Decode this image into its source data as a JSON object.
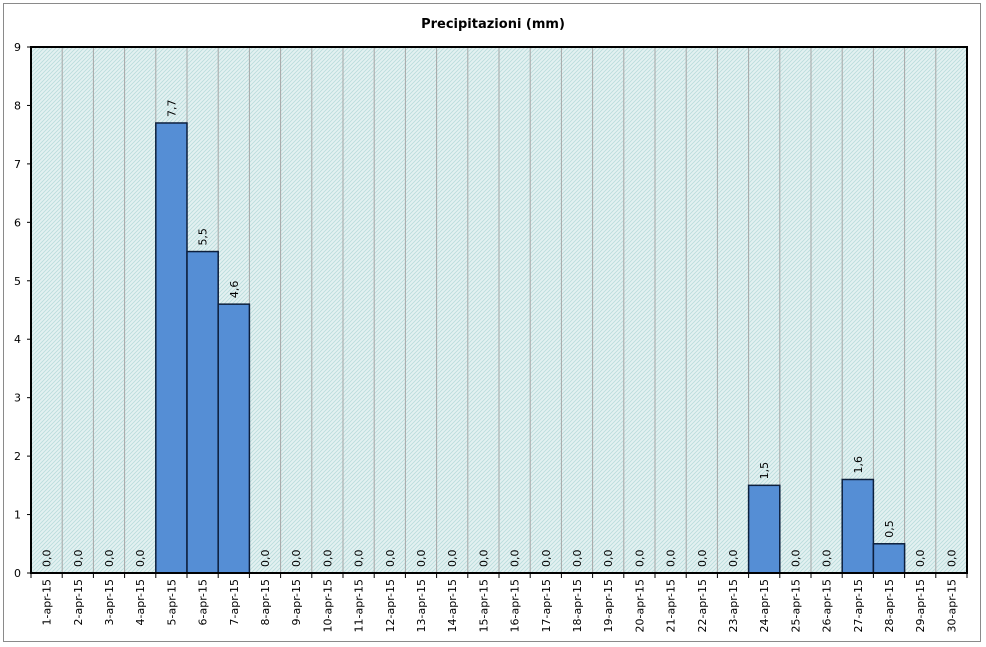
{
  "chart_data": {
    "type": "bar",
    "title": "Precipitazioni (mm)",
    "xlabel": "",
    "ylabel": "",
    "ylim": [
      0,
      9
    ],
    "yticks": [
      0,
      1,
      2,
      3,
      4,
      5,
      6,
      7,
      8,
      9
    ],
    "grid": true,
    "categories": [
      "1-apr-15",
      "2-apr-15",
      "3-apr-15",
      "4-apr-15",
      "5-apr-15",
      "6-apr-15",
      "7-apr-15",
      "8-apr-15",
      "9-apr-15",
      "10-apr-15",
      "11-apr-15",
      "12-apr-15",
      "13-apr-15",
      "14-apr-15",
      "15-apr-15",
      "16-apr-15",
      "17-apr-15",
      "18-apr-15",
      "19-apr-15",
      "20-apr-15",
      "21-apr-15",
      "22-apr-15",
      "23-apr-15",
      "24-apr-15",
      "25-apr-15",
      "26-apr-15",
      "27-apr-15",
      "28-apr-15",
      "29-apr-15",
      "30-apr-15"
    ],
    "values": [
      0.0,
      0.0,
      0.0,
      0.0,
      7.7,
      5.5,
      4.6,
      0.0,
      0.0,
      0.0,
      0.0,
      0.0,
      0.0,
      0.0,
      0.0,
      0.0,
      0.0,
      0.0,
      0.0,
      0.0,
      0.0,
      0.0,
      0.0,
      1.5,
      0.0,
      0.0,
      1.6,
      0.5,
      0.0,
      0.0
    ],
    "data_labels": [
      "0,0",
      "0,0",
      "0,0",
      "0,0",
      "7,7",
      "5,5",
      "4,6",
      "0,0",
      "0,0",
      "0,0",
      "0,0",
      "0,0",
      "0,0",
      "0,0",
      "0,0",
      "0,0",
      "0,0",
      "0,0",
      "0,0",
      "0,0",
      "0,0",
      "0,0",
      "0,0",
      "1,5",
      "0,0",
      "0,0",
      "1,6",
      "0,5",
      "0,0",
      "0,0"
    ],
    "colors": {
      "bar_fill": "#558ed5",
      "bar_stroke": "#0d1f3c",
      "plot_bg": "#dcefef",
      "grid": "#a6a6a6"
    }
  }
}
